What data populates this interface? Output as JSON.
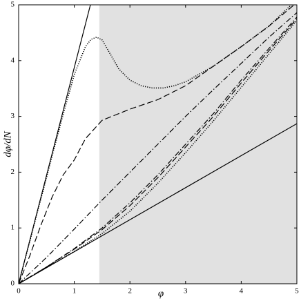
{
  "chart_data": {
    "type": "line",
    "x_label": "φ",
    "y_label": "dφ/dN",
    "xlim": [
      0,
      5
    ],
    "ylim": [
      0,
      5
    ],
    "xticks": [
      0,
      1,
      2,
      3,
      4,
      5
    ],
    "yticks": [
      0,
      1,
      2,
      3,
      4,
      5
    ],
    "shaded_xrange": [
      1.45,
      5
    ],
    "shade_color": "#e1e1e1",
    "series": [
      {
        "color": "#000000",
        "dash": "solid",
        "x": [
          0,
          1.29
        ],
        "values": [
          0,
          5
        ]
      },
      {
        "color": "#000000",
        "dash": "solid",
        "x": [
          0,
          5
        ],
        "values": [
          0,
          2.87
        ]
      },
      {
        "color": "#000000",
        "dash": "dotted",
        "x": [
          0,
          0.25,
          0.5,
          0.75,
          1.0,
          1.2,
          1.3,
          1.4,
          1.5,
          1.6,
          1.8,
          2.0,
          2.2,
          2.4,
          2.6,
          2.8,
          3.0,
          3.5,
          4.0,
          4.5,
          4.9
        ],
        "values": [
          0,
          0.95,
          1.9,
          2.85,
          3.75,
          4.25,
          4.38,
          4.42,
          4.37,
          4.2,
          3.85,
          3.65,
          3.55,
          3.51,
          3.51,
          3.55,
          3.62,
          3.9,
          4.25,
          4.62,
          5.0
        ]
      },
      {
        "color": "#000000",
        "dash": "dashed",
        "x": [
          0,
          0.2,
          0.4,
          0.6,
          0.8,
          1.0,
          1.2,
          1.5,
          2.0,
          2.5,
          3.0,
          3.5,
          4.0,
          4.5,
          4.95
        ],
        "values": [
          0,
          0.5,
          1.05,
          1.55,
          1.95,
          2.22,
          2.6,
          2.93,
          3.13,
          3.3,
          3.55,
          3.9,
          4.25,
          4.62,
          5.0
        ]
      },
      {
        "color": "#000000",
        "dash": "dashdot",
        "x": [
          0,
          0.5,
          1,
          1.5,
          2,
          2.5,
          3,
          3.5,
          4,
          4.5,
          5
        ],
        "values": [
          0,
          0.47,
          0.98,
          1.5,
          2.0,
          2.5,
          3.0,
          3.48,
          3.95,
          4.42,
          4.86
        ]
      },
      {
        "color": "#000000",
        "dash": "dashdot",
        "x": [
          0,
          0.5,
          1,
          1.5,
          2,
          2.5,
          3,
          3.5,
          4,
          4.5,
          5
        ],
        "values": [
          0,
          0.3,
          0.63,
          1.0,
          1.45,
          1.95,
          2.5,
          3.05,
          3.65,
          4.22,
          4.78
        ]
      },
      {
        "color": "#000000",
        "dash": "dashed",
        "x": [
          0,
          0.5,
          1,
          1.5,
          2,
          2.5,
          3,
          3.5,
          4,
          4.5,
          5
        ],
        "values": [
          0,
          0.3,
          0.62,
          0.97,
          1.4,
          1.9,
          2.45,
          3.0,
          3.6,
          4.18,
          4.75
        ]
      },
      {
        "color": "#000000",
        "dash": "dotted",
        "x": [
          0,
          0.5,
          1,
          1.5,
          2,
          2.5,
          3,
          3.5,
          4,
          4.5,
          5
        ],
        "values": [
          0,
          0.29,
          0.58,
          0.9,
          1.3,
          1.8,
          2.35,
          2.92,
          3.52,
          4.12,
          4.72
        ]
      }
    ]
  }
}
